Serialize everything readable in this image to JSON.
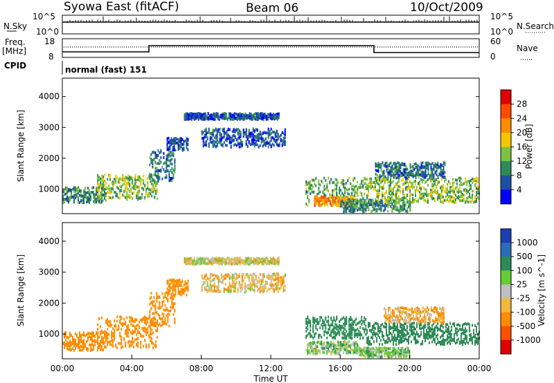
{
  "header": {
    "station": "Syowa East (fitACF)",
    "beam": "Beam 06",
    "date": "10/Oct/2009"
  },
  "top_panels": {
    "nsky_label": "N.Sky",
    "nsky_ticks": [
      "10^5",
      "10^0"
    ],
    "nsearch_label": "N.Search",
    "nsearch_ticks": [
      "10^5",
      "10^0"
    ],
    "freq_label_1": "Freq.",
    "freq_label_2": "[MHz]",
    "freq_ticks": [
      "18",
      "8"
    ],
    "nave_label": "Nave",
    "nave_ticks": [
      "60",
      "0"
    ],
    "cpid_label": "CPID",
    "cpid_text": "normal (fast) 151"
  },
  "power_colorbar": {
    "label": "Power [dB]",
    "ticks": [
      "28",
      "24",
      "20",
      "16",
      "12",
      "8",
      "4"
    ],
    "colors": [
      "#e00000",
      "#ff4a00",
      "#ff8c00",
      "#f5c800",
      "#7bc142",
      "#2e8b57",
      "#1f4fa0",
      "#0000ff"
    ]
  },
  "velocity_colorbar": {
    "label": "Velocity [m s^-1]",
    "ticks": [
      "1000",
      "500",
      "100",
      "25",
      "-25",
      "-100",
      "-500",
      "-1000"
    ],
    "colors": [
      "#1e3fb0",
      "#2a6db8",
      "#2e8b57",
      "#66cc33",
      "#bfbfbf",
      "#f0b840",
      "#ff8c00",
      "#ff5000",
      "#e00000"
    ]
  },
  "chart_data": [
    {
      "type": "heatmap",
      "name": "power",
      "ylabel": "Slant Range [km]",
      "yticks": [
        1000,
        2000,
        3000,
        4000
      ],
      "ylim": [
        200,
        4600
      ],
      "xlim": [
        0,
        24
      ],
      "xticks": [
        "00:00",
        "04:00",
        "08:00",
        "12:00",
        "16:00",
        "20:00",
        "00:00"
      ],
      "bands": [
        {
          "t0": 0.0,
          "t1": 2.5,
          "r0": 600,
          "r1": 1100,
          "v": 10
        },
        {
          "t0": 2.0,
          "t1": 5.5,
          "r0": 700,
          "r1": 1500,
          "v": 14
        },
        {
          "t0": 5.0,
          "t1": 6.5,
          "r0": 1300,
          "r1": 2300,
          "v": 8
        },
        {
          "t0": 6.0,
          "t1": 7.2,
          "r0": 2300,
          "r1": 2700,
          "v": 6
        },
        {
          "t0": 7.0,
          "t1": 12.5,
          "r0": 3300,
          "r1": 3500,
          "v": 6
        },
        {
          "t0": 8.0,
          "t1": 12.8,
          "r0": 2400,
          "r1": 3000,
          "v": 6
        },
        {
          "t0": 14.0,
          "t1": 17.5,
          "r0": 500,
          "r1": 1400,
          "v": 12
        },
        {
          "t0": 14.5,
          "t1": 16.8,
          "r0": 500,
          "r1": 800,
          "v": 22
        },
        {
          "t0": 16.0,
          "t1": 20.0,
          "r0": 300,
          "r1": 700,
          "v": 10
        },
        {
          "t0": 17.5,
          "t1": 24.0,
          "r0": 600,
          "r1": 1400,
          "v": 14
        },
        {
          "t0": 18.0,
          "t1": 22.0,
          "r0": 1400,
          "r1": 1900,
          "v": 8
        }
      ]
    },
    {
      "type": "heatmap",
      "name": "velocity",
      "ylabel": "Slant Range [km]",
      "xlabel": "Time UT",
      "yticks": [
        1000,
        2000,
        3000,
        4000
      ],
      "ylim": [
        200,
        4600
      ],
      "xlim": [
        0,
        24
      ],
      "xticks": [
        "00:00",
        "04:00",
        "08:00",
        "12:00",
        "16:00",
        "20:00",
        "00:00"
      ],
      "bands": [
        {
          "t0": 0.0,
          "t1": 2.5,
          "r0": 500,
          "r1": 1100,
          "v": -300
        },
        {
          "t0": 2.0,
          "t1": 5.5,
          "r0": 600,
          "r1": 1600,
          "v": -400
        },
        {
          "t0": 5.0,
          "t1": 6.5,
          "r0": 1300,
          "r1": 2400,
          "v": -300
        },
        {
          "t0": 6.0,
          "t1": 7.2,
          "r0": 2300,
          "r1": 2800,
          "v": -150
        },
        {
          "t0": 7.0,
          "t1": 12.5,
          "r0": 3300,
          "r1": 3500,
          "v": -20
        },
        {
          "t0": 8.0,
          "t1": 12.8,
          "r0": 2400,
          "r1": 3000,
          "v": -50
        },
        {
          "t0": 14.0,
          "t1": 17.5,
          "r0": 900,
          "r1": 1600,
          "v": 400
        },
        {
          "t0": 14.0,
          "t1": 17.0,
          "r0": 400,
          "r1": 800,
          "v": 60
        },
        {
          "t0": 17.0,
          "t1": 20.0,
          "r0": 300,
          "r1": 600,
          "v": 60
        },
        {
          "t0": 17.5,
          "t1": 24.0,
          "r0": 700,
          "r1": 1400,
          "v": 200
        },
        {
          "t0": 18.5,
          "t1": 22.0,
          "r0": 1400,
          "r1": 1900,
          "v": -80
        }
      ]
    }
  ]
}
